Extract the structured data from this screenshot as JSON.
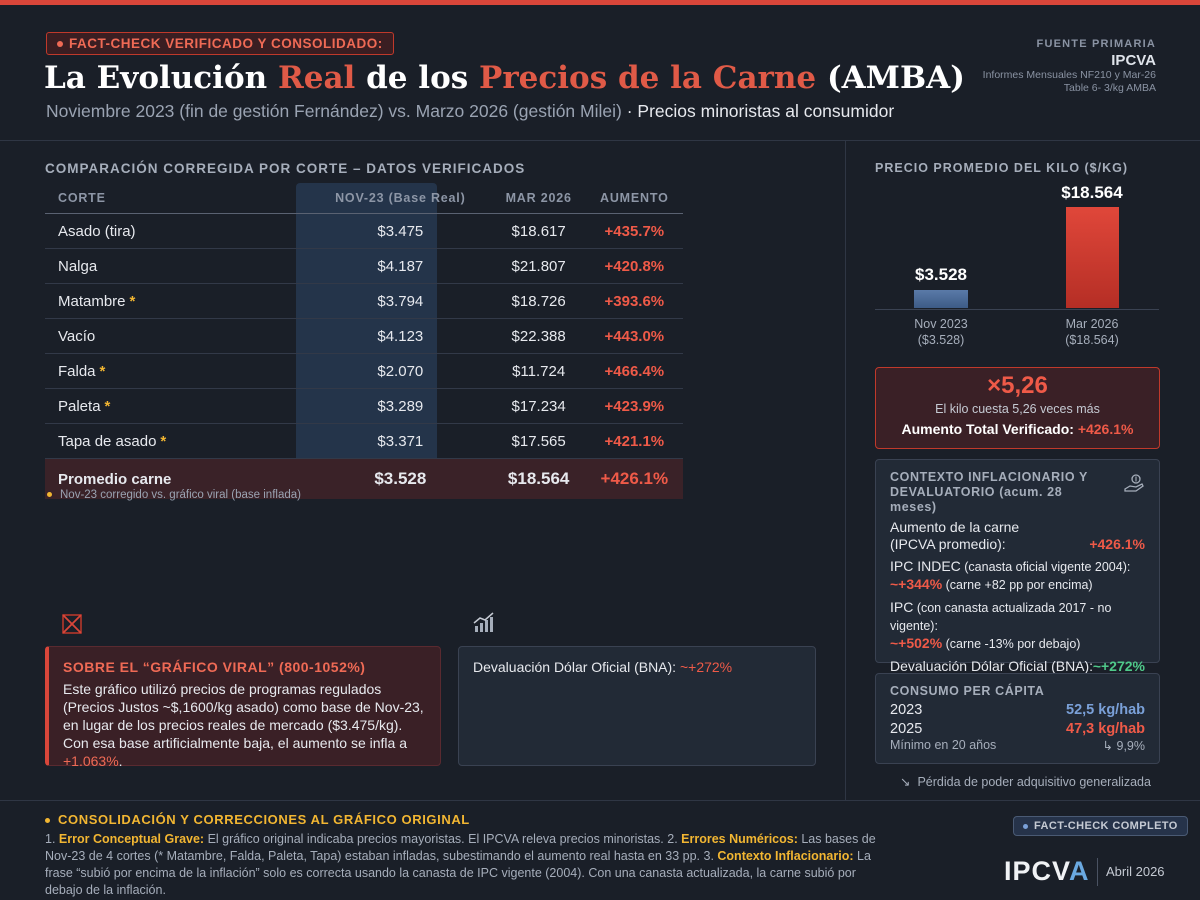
{
  "header": {
    "badge": "FACT-CHECK VERIFICADO Y CONSOLIDADO:",
    "title_part1": "La Evolución ",
    "title_part2": "Real",
    "title_part3": " de los ",
    "title_part4": "Precios de la Carne",
    "title_part5": " (AMBA)",
    "subtitle_part1": "Noviembre 2023 (fin de gestión Fernández) vs. Marzo 2026 (gestión Milei)",
    "subtitle_part2": " · Precios minoristas al consumidor"
  },
  "source": {
    "label": "FUENTE PRIMARIA",
    "name": "IPCVA",
    "line1": "Informes Mensuales NF210 y Mar-26",
    "line2": "Table 6- 3/kg AMBA"
  },
  "table": {
    "title": "COMPARACIÓN CORREGIDA POR CORTE – DATOS VERIFICADOS",
    "headers": [
      "CORTE",
      "NOV-23 (Base Real)",
      "MAR 2026",
      "AUMENTO"
    ],
    "rows": [
      {
        "cut": "Asado (tira)",
        "star": "",
        "nov": "$3.475",
        "mar": "$18.617",
        "inc": "+435.7%"
      },
      {
        "cut": "Nalga",
        "star": "",
        "nov": "$4.187",
        "mar": "$21.807",
        "inc": "+420.8%"
      },
      {
        "cut": "Matambre",
        "star": "*",
        "nov": "$3.794",
        "mar": "$18.726",
        "inc": "+393.6%"
      },
      {
        "cut": "Vacío",
        "star": "",
        "nov": "$4.123",
        "mar": "$22.388",
        "inc": "+443.0%"
      },
      {
        "cut": "Falda",
        "star": "*",
        "nov": "$2.070",
        "mar": "$11.724",
        "inc": "+466.4%"
      },
      {
        "cut": "Paleta",
        "star": "*",
        "nov": "$3.289",
        "mar": "$17.234",
        "inc": "+423.9%"
      },
      {
        "cut": "Tapa de asado",
        "star": "*",
        "nov": "$3.371",
        "mar": "$17.565",
        "inc": "+421.1%"
      }
    ],
    "avg": {
      "cut": "Promedio carne",
      "nov": "$3.528",
      "mar": "$18.564",
      "inc": "+426.1%"
    },
    "note": "Nov-23 corregido vs. gráfico viral (base inflada)"
  },
  "viral": {
    "heading": "SOBRE EL “GRÁFICO VIRAL” (800-1052%)",
    "body": "Este gráfico utilizó precios de programas regulados (Precios Justos ~$,1600/kg asado) como base de Nov-23, en lugar de los precios reales de mercado ($3.475/kg). Con esa base artificialmente baja, el aumento se infla a ",
    "highlight": "+1.063%",
    "end": "."
  },
  "dolar_box": {
    "label": "Devaluación Dólar Oficial (BNA): ",
    "value": "~+272%"
  },
  "chart_data": {
    "type": "bar",
    "title": "PRECIO PROMEDIO DEL KILO ($/KG)",
    "categories": [
      "Nov 2023",
      "Mar 2026"
    ],
    "category_sublabels": [
      "($3.528)",
      "($18.564)"
    ],
    "value_labels": [
      "$3.528",
      "$18.564"
    ],
    "values": [
      3528,
      18564
    ],
    "colors": [
      "#4a6a98",
      "#d13b2f"
    ]
  },
  "multiplier": {
    "value": "×5,26",
    "desc": "El kilo cuesta 5,26 veces más",
    "total_label": "Aumento Total Verificado: ",
    "total_value": "+426.1%"
  },
  "context": {
    "heading": "CONTEXTO INFLACIONARIO Y DEVALUATORIO (acum. 28 meses)",
    "r1_a": "Aumento de la carne",
    "r1_b": "(IPCVA promedio):",
    "r1_v": "+426.1%",
    "r2_label": "IPC INDEC",
    "r2_sub": " (canasta oficial vigente 2004):",
    "r2_v": "~+344%",
    "r2_note": " (carne +82 pp por encima)",
    "r3_label": "IPC",
    "r3_sub": " (con canasta actualizada 2017 - no vigente):",
    "r3_v": "~+502%",
    "r3_note": " (carne -13% por debajo)",
    "r4_label": "Devaluación Dólar Oficial (BNA):",
    "r4_v": "~+272%"
  },
  "consumption": {
    "heading": "CONSUMO PER CÁPITA",
    "y1": "2023",
    "v1": "52,5  kg/hab",
    "y2": "2025",
    "v2": "47,3  kg/hab",
    "min_label": "Mínimo en 20 años",
    "min_value": "9,9%"
  },
  "loss": "Pérdida de poder adquisitivo generalizada",
  "footer": {
    "heading": "CONSOLIDACIÓN Y CORRECCIONES AL GRÁFICO ORIGINAL",
    "p1_pre": "1. ",
    "p1_b": "Error Conceptual Grave:",
    "p1": " El gráfico original indicaba precios mayoristas. El IPCVA releva precios minoristas. 2. ",
    "p2_b": "Errores Numéricos:",
    "p2": " Las bases de Nov-23 de 4 cortes (* Matambre, Falda, Paleta, Tapa) estaban infladas, subestimando el aumento real hasta en 33 pp. 3. ",
    "p3_b": "Contexto Inflacionario:",
    "p3": " La frase “subió por encima de la inflación” solo es correcta usando la canasta de IPC vigente (2004). Con una canasta actualizada, la carne subió por debajo de la inflación.",
    "badge": "FACT-CHECK COMPLETO",
    "logo_a": "IPCV",
    "logo_b": "A",
    "date": "Abril 2026"
  }
}
